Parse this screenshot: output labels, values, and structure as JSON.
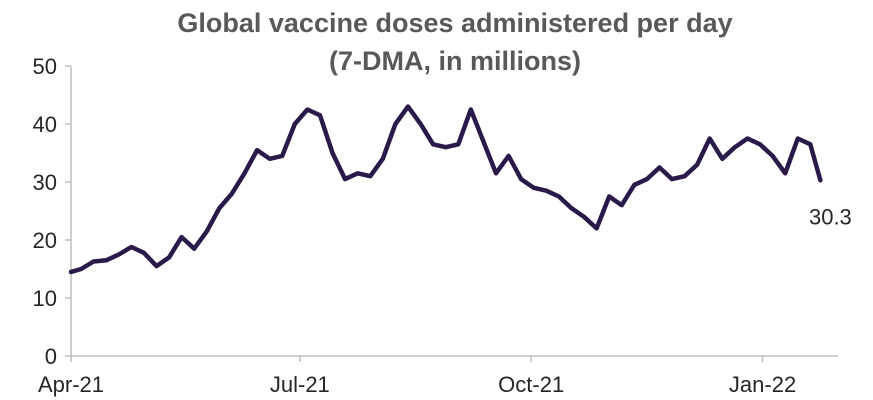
{
  "chart_data": {
    "type": "line",
    "title": "Global vaccine doses administered per day",
    "subtitle": "(7-DMA, in millions)",
    "xlabel": "",
    "ylabel": "",
    "ylim": [
      0,
      50
    ],
    "yticks": [
      0,
      10,
      20,
      30,
      40,
      50
    ],
    "xlim": [
      "2021-04-01",
      "2022-01-31"
    ],
    "xticks": [
      {
        "date": "2021-04-01",
        "label": "Apr-21"
      },
      {
        "date": "2021-07-01",
        "label": "Jul-21"
      },
      {
        "date": "2021-10-01",
        "label": "Oct-21"
      },
      {
        "date": "2022-01-01",
        "label": "Jan-22"
      }
    ],
    "grid": false,
    "legend": "none",
    "series": [
      {
        "color": "#2a1a4a",
        "points": [
          [
            "2021-04-01",
            14.5
          ],
          [
            "2021-04-05",
            15.0
          ],
          [
            "2021-04-10",
            16.3
          ],
          [
            "2021-04-15",
            16.5
          ],
          [
            "2021-04-20",
            17.5
          ],
          [
            "2021-04-25",
            18.8
          ],
          [
            "2021-04-30",
            17.8
          ],
          [
            "2021-05-05",
            15.5
          ],
          [
            "2021-05-10",
            17.0
          ],
          [
            "2021-05-15",
            20.5
          ],
          [
            "2021-05-20",
            18.5
          ],
          [
            "2021-05-25",
            21.5
          ],
          [
            "2021-05-30",
            25.5
          ],
          [
            "2021-06-04",
            28.0
          ],
          [
            "2021-06-09",
            31.5
          ],
          [
            "2021-06-14",
            35.5
          ],
          [
            "2021-06-19",
            34.0
          ],
          [
            "2021-06-24",
            34.5
          ],
          [
            "2021-06-29",
            40.0
          ],
          [
            "2021-07-04",
            42.5
          ],
          [
            "2021-07-09",
            41.5
          ],
          [
            "2021-07-14",
            35.0
          ],
          [
            "2021-07-19",
            30.5
          ],
          [
            "2021-07-24",
            31.5
          ],
          [
            "2021-07-29",
            31.0
          ],
          [
            "2021-08-03",
            34.0
          ],
          [
            "2021-08-08",
            40.0
          ],
          [
            "2021-08-13",
            43.0
          ],
          [
            "2021-08-18",
            40.0
          ],
          [
            "2021-08-23",
            36.5
          ],
          [
            "2021-08-28",
            36.0
          ],
          [
            "2021-09-02",
            36.5
          ],
          [
            "2021-09-07",
            42.5
          ],
          [
            "2021-09-12",
            37.0
          ],
          [
            "2021-09-17",
            31.5
          ],
          [
            "2021-09-22",
            34.5
          ],
          [
            "2021-09-27",
            30.5
          ],
          [
            "2021-10-02",
            29.0
          ],
          [
            "2021-10-07",
            28.5
          ],
          [
            "2021-10-12",
            27.5
          ],
          [
            "2021-10-17",
            25.5
          ],
          [
            "2021-10-22",
            24.0
          ],
          [
            "2021-10-27",
            22.0
          ],
          [
            "2021-11-01",
            27.5
          ],
          [
            "2021-11-06",
            26.0
          ],
          [
            "2021-11-11",
            29.5
          ],
          [
            "2021-11-16",
            30.5
          ],
          [
            "2021-11-21",
            32.5
          ],
          [
            "2021-11-26",
            30.5
          ],
          [
            "2021-12-01",
            31.0
          ],
          [
            "2021-12-06",
            33.0
          ],
          [
            "2021-12-11",
            37.5
          ],
          [
            "2021-12-16",
            34.0
          ],
          [
            "2021-12-21",
            36.0
          ],
          [
            "2021-12-26",
            37.5
          ],
          [
            "2021-12-31",
            36.5
          ],
          [
            "2022-01-05",
            34.5
          ],
          [
            "2022-01-10",
            31.5
          ],
          [
            "2022-01-15",
            37.5
          ],
          [
            "2022-01-20",
            36.5
          ],
          [
            "2022-01-24",
            30.3
          ]
        ]
      }
    ],
    "annotations": [
      {
        "date": "2022-01-24",
        "value": 30.3,
        "text": "30.3"
      }
    ]
  }
}
